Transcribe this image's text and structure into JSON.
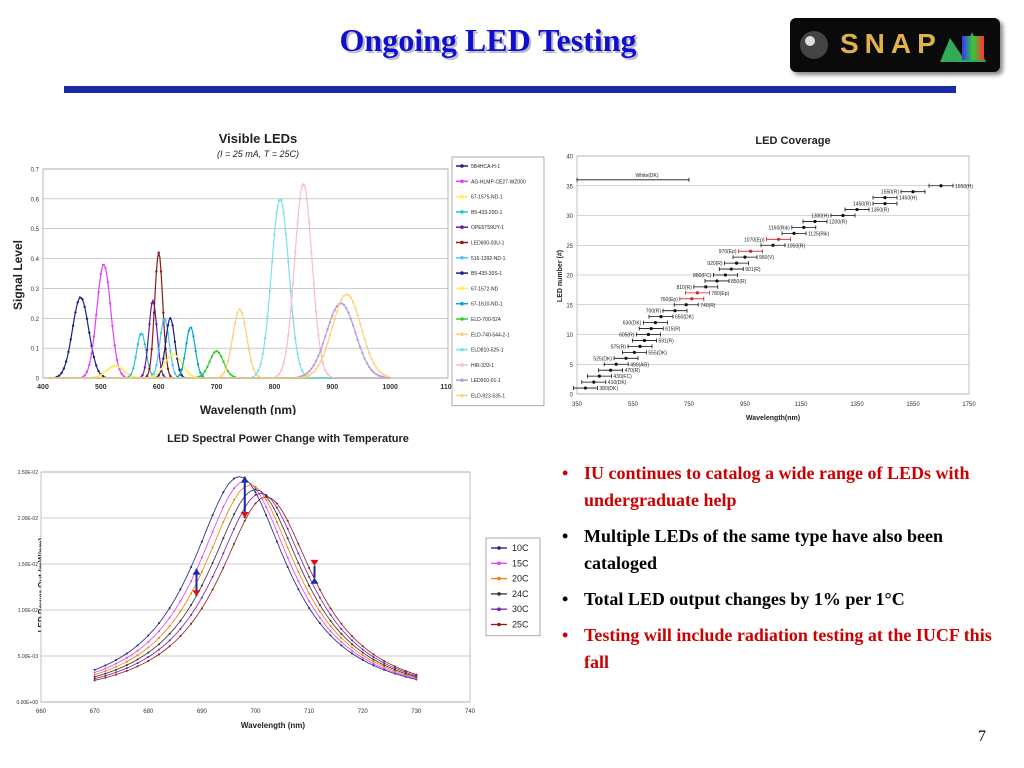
{
  "title": "Ongoing LED Testing",
  "logo_text": "SNAP",
  "page_number": "7",
  "colors": {
    "title": "#1010cc",
    "rule": "#1a2aa6",
    "red_text": "#cc0000"
  },
  "bullets": [
    {
      "text": "IU continues to catalog a wide range of LEDs with undergraduate help",
      "color": "#cc0000"
    },
    {
      "text": "Multiple LEDs of the same type have also been cataloged",
      "color": "#000000"
    },
    {
      "text": "Total LED output changes by 1% per 1°C",
      "color": "#000000"
    },
    {
      "text": "Testing will include radiation testing at the IUCF this fall",
      "color": "#cc0000"
    }
  ],
  "chart_data": [
    {
      "type": "line",
      "title": "Visible LEDs",
      "subtitle": "(I = 25 mA, T = 25C)",
      "xlabel": "Wavelength (nm)",
      "ylabel": "Signal Level",
      "xlim": [
        400,
        1100
      ],
      "ylim": [
        0,
        0.7
      ],
      "xticks": [
        400,
        500,
        600,
        700,
        800,
        900,
        1000,
        1100
      ],
      "yticks": [
        0,
        0.1,
        0.2,
        0.3,
        0.4,
        0.5,
        0.6,
        0.7
      ],
      "grid": true,
      "legend_position": "right",
      "series": [
        {
          "name": "5B4HCA-H-1",
          "color": "#1a237e",
          "peak_nm": 465,
          "peak": 0.27,
          "width": 14
        },
        {
          "name": "AG-HLMP-CE27-WZ000",
          "color": "#e040fb",
          "peak_nm": 505,
          "peak": 0.38,
          "width": 12
        },
        {
          "name": "67-1575-ND-1",
          "color": "#ffee58",
          "peak_nm": 525,
          "peak": 0.04,
          "width": 15
        },
        {
          "name": "B5-433-20D-1",
          "color": "#26c6da",
          "peak_nm": 570,
          "peak": 0.15,
          "width": 8
        },
        {
          "name": "OPE5T59UY-1",
          "color": "#6a1b9a",
          "peak_nm": 590,
          "peak": 0.26,
          "width": 7
        },
        {
          "name": "LED600-03U-1",
          "color": "#8b1a1a",
          "peak_nm": 600,
          "peak": 0.42,
          "width": 7
        },
        {
          "name": "516-1392-ND-1",
          "color": "#4fc3f7",
          "peak_nm": 610,
          "peak": 0.2,
          "width": 8
        },
        {
          "name": "B5-435-30S-1",
          "color": "#1a237e",
          "peak_nm": 620,
          "peak": 0.2,
          "width": 8
        },
        {
          "name": "67-1572-ND",
          "color": "#ffee58",
          "peak_nm": 625,
          "peak": 0.08,
          "width": 15
        },
        {
          "name": "67-1610-ND-1",
          "color": "#00acc1",
          "peak_nm": 655,
          "peak": 0.17,
          "width": 8
        },
        {
          "name": "ELD-700-524",
          "color": "#33cc33",
          "peak_nm": 700,
          "peak": 0.09,
          "width": 12
        },
        {
          "name": "ELD-740-544-2-1",
          "color": "#ffcc80",
          "peak_nm": 740,
          "peak": 0.23,
          "width": 12
        },
        {
          "name": "ELD810-525-1",
          "color": "#80deea",
          "peak_nm": 810,
          "peak": 0.6,
          "width": 15
        },
        {
          "name": "HIR-333-1",
          "color": "#f8bbd0",
          "peak_nm": 850,
          "peak": 0.65,
          "width": 15
        },
        {
          "name": "LED910-01-1",
          "color": "#b39ddb",
          "peak_nm": 915,
          "peak": 0.25,
          "width": 25
        },
        {
          "name": "ELD-923-535-1",
          "color": "#ffd180",
          "peak_nm": 925,
          "peak": 0.28,
          "width": 25
        }
      ]
    },
    {
      "type": "scatter",
      "title": "LED Coverage",
      "xlabel": "Wavelength(nm)",
      "ylabel": "LED number (#)",
      "xlim": [
        350,
        1750
      ],
      "ylim": [
        0,
        40
      ],
      "xticks": [
        350,
        550,
        750,
        950,
        1150,
        1350,
        1550,
        1750
      ],
      "yticks": [
        0,
        5,
        10,
        15,
        20,
        25,
        30,
        35,
        40
      ],
      "grid": true,
      "points": [
        {
          "n": 1,
          "x": 380,
          "label": "380(DK)"
        },
        {
          "n": 2,
          "x": 410,
          "label": "410(DK)"
        },
        {
          "n": 3,
          "x": 430,
          "label": "430(FC)"
        },
        {
          "n": 4,
          "x": 470,
          "label": "470(R)"
        },
        {
          "n": 5,
          "x": 490,
          "label": "490(AG)"
        },
        {
          "n": 6,
          "x": 525,
          "label": "525(DK)"
        },
        {
          "n": 7,
          "x": 555,
          "label": "555(DK)"
        },
        {
          "n": 8,
          "x": 575,
          "label": "575(R)"
        },
        {
          "n": 9,
          "x": 591,
          "label": "591(R)"
        },
        {
          "n": 10,
          "x": 605,
          "label": "605(R)"
        },
        {
          "n": 11,
          "x": 615,
          "label": "615(R)"
        },
        {
          "n": 12,
          "x": 630,
          "label": "630(DK)"
        },
        {
          "n": 13,
          "x": 650,
          "label": "650(DK)"
        },
        {
          "n": 14,
          "x": 700,
          "label": "700(R)"
        },
        {
          "n": 15,
          "x": 740,
          "label": "740(R)"
        },
        {
          "n": 16,
          "x": 760,
          "label": "760(Ep)"
        },
        {
          "n": 17,
          "x": 780,
          "label": "780(Ep)"
        },
        {
          "n": 18,
          "x": 810,
          "label": "810(R)"
        },
        {
          "n": 19,
          "x": 850,
          "label": "850(R)"
        },
        {
          "n": 20,
          "x": 880,
          "label": "880(FC)"
        },
        {
          "n": 21,
          "x": 901,
          "label": "901(R)"
        },
        {
          "n": 22,
          "x": 920,
          "label": "920(R)"
        },
        {
          "n": 23,
          "x": 950,
          "label": "950(V)"
        },
        {
          "n": 24,
          "x": 970,
          "label": "970(Ep)"
        },
        {
          "n": 25,
          "x": 1050,
          "label": "1050(R)"
        },
        {
          "n": 26,
          "x": 1070,
          "label": "1070(Ep)"
        },
        {
          "n": 27,
          "x": 1125,
          "label": "1125(Rik)"
        },
        {
          "n": 28,
          "x": 1160,
          "label": "1160(Rik)"
        },
        {
          "n": 29,
          "x": 1200,
          "label": "1200(R)"
        },
        {
          "n": 30,
          "x": 1300,
          "label": "1300(H)"
        },
        {
          "n": 31,
          "x": 1350,
          "label": "1350(R)"
        },
        {
          "n": 32,
          "x": 1450,
          "label": "1450(R)"
        },
        {
          "n": 33,
          "x": 1450,
          "label": "1450(H)"
        },
        {
          "n": 34,
          "x": 1550,
          "label": "1550(R)"
        },
        {
          "n": 35,
          "x": 1650,
          "label": "1650(H)"
        },
        {
          "n": 36,
          "x": 550,
          "label": "White(DK)",
          "range": [
            350,
            750
          ]
        }
      ]
    },
    {
      "type": "line",
      "title": "LED Spectral Power Change with Temperature",
      "xlabel": "Wavelength (nm)",
      "ylabel": "LED Power Out (mW/nm)",
      "xlim": [
        660,
        740
      ],
      "ylim": [
        0,
        0.025
      ],
      "xticks": [
        660,
        670,
        680,
        690,
        700,
        710,
        720,
        730,
        740
      ],
      "yticks": [
        0,
        0.005,
        0.01,
        0.015,
        0.02,
        0.025
      ],
      "ytick_labels": [
        "0.00E+00",
        "5.00E-03",
        "1.00E-02",
        "1.50E-02",
        "2.00E-02",
        "2.50E-02"
      ],
      "grid": true,
      "legend_position": "right",
      "series": [
        {
          "name": "10C",
          "color": "#1a237e",
          "center": 697,
          "peak": 0.0245
        },
        {
          "name": "15C",
          "color": "#e040fb",
          "center": 698,
          "peak": 0.024
        },
        {
          "name": "20C",
          "color": "#f57c00",
          "center": 699,
          "peak": 0.0236
        },
        {
          "name": "24C",
          "color": "#333333",
          "center": 700,
          "peak": 0.0231
        },
        {
          "name": "30C",
          "color": "#7b1fa2",
          "center": 701,
          "peak": 0.0227
        },
        {
          "name": "25C",
          "color": "#8b1a1a",
          "center": 702,
          "peak": 0.0223
        }
      ]
    }
  ]
}
